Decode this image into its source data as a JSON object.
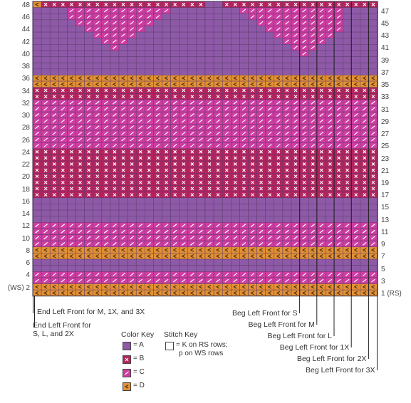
{
  "colors": {
    "A": "#8e5aa8",
    "B": "#b5245f",
    "C": "#cf3da2",
    "D": "#e39033",
    "grid": "#5a3b6a"
  },
  "chart": {
    "cols": 40,
    "rows": 48,
    "rows_top_to_bottom": [
      "DBBBBBBBBBBBBBBBBBBBAABBBBBBBBBBBBBBBBBB",
      "AAAACCCCCCCCCCCCAAAAAAAACCCCCCCCCCCCAAAA",
      "AAAACCCCCCCCCCCAAAAAAAAAACCCCCCCCCCCAAAA",
      "AAAAACCCCCCCCCAAAAAAAAAAAACCCCCCCCCCAAAA",
      "AAAAAACCCCCCCAAAAAAAAAAAAAACCCCCCCCCAAAA",
      "AAAAAAACCCCCAAAAAAAAAAAAAAAACCCCCCCAAAAA",
      "AAAAAAAACCCAAAAAAAAAAAAAAAAAACCCCCAAAAAA",
      "AAAAAAAAACAAAAAAAAAAAAAAAAAAAACCCAAAAAAA",
      "AAAAAAAAAAAAAAAAAAAAAAAAAAAAAAACAAAAAAAA",
      "AAAAAAAAAAAAAAAAAAAAAAAAAAAAAAAAAAAAAAAA",
      "AAAAAAAAAAAAAAAAAAAAAAAAAAAAAAAAAAAAAAAA",
      "AAAAAAAAAAAAAAAAAAAAAAAAAAAAAAAAAAAAAAAA",
      "DDDDDDDDDDDDDDDDDDDDDDDDDDDDDDDDDDDDDDDD",
      "DDDDDDDDDDDDDDDDDDDDDDDDDDDDDDDDDDDDDDDD",
      "BBBBBBBBBBBBBBBBBBBBBBBBBBBBBBBBBBBBBBBB",
      "BBBBBBBBBBBBBBBBBBBBBBBBBBBBBBBBBBBBBBBB",
      "CCCCCCCCCCCCCCCCCCCCCCCCCCCCCCCCCCCCCCCC",
      "CCCCCCCCCCCCCCCCCCCCCCCCCCCCCCCCCCCCCCCC",
      "CCCCCCCCCCCCCCCCCCCCCCCCCCCCCCCCCCCCCCCC",
      "CCCCCCCCCCCCCCCCCCCCCCCCCCCCCCCCCCCCCCCC",
      "CCCCCCCCCCCCCCCCCCCCCCCCCCCCCCCCCCCCCCCC",
      "CCCCCCCCCCCCCCCCCCCCCCCCCCCCCCCCCCCCCCCC",
      "CCCCCCCCCCCCCCCCCCCCCCCCCCCCCCCCCCCCCCCC",
      "CCCCCCCCCCCCCCCCCCCCCCCCCCCCCCCCCCCCCCCC",
      "BBBBBBBBBBBBBBBBBBBBBBBBBBBBBBBBBBBBBBBB",
      "BBBBBBBBBBBBBBBBBBBBBBBBBBBBBBBBBBBBBBBB",
      "BBBBBBBBBBBBBBBBBBBBBBBBBBBBBBBBBBBBBBBB",
      "BBBBBBBBBBBBBBBBBBBBBBBBBBBBBBBBBBBBBBBB",
      "BBBBBBBBBBBBBBBBBBBBBBBBBBBBBBBBBBBBBBBB",
      "BBBBBBBBBBBBBBBBBBBBBBBBBBBBBBBBBBBBBBBB",
      "BBBBBBBBBBBBBBBBBBBBBBBBBBBBBBBBBBBBBBBB",
      "BBBBBBBBBBBBBBBBBBBBBBBBBBBBBBBBBBBBBBBB",
      "AAAAAAAAAAAAAAAAAAAAAAAAAAAAAAAAAAAAAAAA",
      "AAAAAAAAAAAAAAAAAAAAAAAAAAAAAAAAAAAAAAAA",
      "AAAAAAAAAAAAAAAAAAAAAAAAAAAAAAAAAAAAAAAA",
      "AAAAAAAAAAAAAAAAAAAAAAAAAAAAAAAAAAAAAAAA",
      "CCCCCCCCCCCCCCCCCCCCCCCCCCCCCCCCCCCCCCCC",
      "CCCCCCCCCCCCCCCCCCCCCCCCCCCCCCCCCCCCCCCC",
      "CCCCCCCCCCCCCCCCCCCCCCCCCCCCCCCCCCCCCCCC",
      "CCCCCCCCCCCCCCCCCCCCCCCCCCCCCCCCCCCCCCCC",
      "DDDDDDDDDDDDDDDDDDDDDDDDDDDDDDDDDDDDDDDD",
      "DDDDDDDDDDDDDDDDDDDDDDDDDDDDDDDDDDDDDDDD",
      "AAAAAAAAAAAAAAAAAAAAAAAAAAAAAAAAAAAAAAAA",
      "AAAAAAAAAAAAAAAAAAAAAAAAAAAAAAAAAAAAAAAA",
      "CCCCCCCCCCCCCCCCCCCCCCCCCCCCCCCCCCCCCCCC",
      "CCCCCCCCCCCCCCCCCCCCCCCCCCCCCCCCCCCCCCCC",
      "DDDDDDDDDDDDDDDDDDDDDDDDDDDDDDDDDDDDDDDD",
      "DDDDDDDDDDDDDDDDDDDDDDDDDDDDDDDDDDDDDDDD"
    ],
    "left_row_numbers": [
      "48",
      "46",
      "44",
      "42",
      "40",
      "38",
      "36",
      "34",
      "32",
      "30",
      "28",
      "26",
      "24",
      "22",
      "20",
      "18",
      "16",
      "14",
      "12",
      "10",
      "8",
      "6",
      "4",
      "(WS) 2"
    ],
    "right_row_numbers": [
      "47",
      "45",
      "43",
      "41",
      "39",
      "37",
      "35",
      "33",
      "31",
      "29",
      "27",
      "25",
      "23",
      "21",
      "19",
      "17",
      "15",
      "13",
      "11",
      "9",
      "7",
      "5",
      "3",
      "1 (RS)"
    ],
    "end_left_label_1": "End Left Front for M, 1X, and 3X",
    "end_left_label_2": "End Left Front for\nS, L, and 2X",
    "beg_labels": [
      {
        "text": "Beg Left Front for S",
        "col": 31
      },
      {
        "text": "Beg Left Front for M",
        "col": 33
      },
      {
        "text": "Beg Left Front for L",
        "col": 35
      },
      {
        "text": "Beg Left Front for 1X",
        "col": 37
      },
      {
        "text": "Beg Left Front for 2X",
        "col": 39
      },
      {
        "text": "Beg Left Front for 3X",
        "col": 40
      }
    ]
  },
  "color_key": {
    "title": "Color Key",
    "items": [
      {
        "symbol": "A",
        "label": "= A"
      },
      {
        "symbol": "B",
        "label": "= B"
      },
      {
        "symbol": "C",
        "label": "= C"
      },
      {
        "symbol": "D",
        "label": "= D"
      }
    ]
  },
  "stitch_key": {
    "title": "Stitch Key",
    "line1": "= K on RS rows;",
    "line2": "p on WS rows"
  }
}
